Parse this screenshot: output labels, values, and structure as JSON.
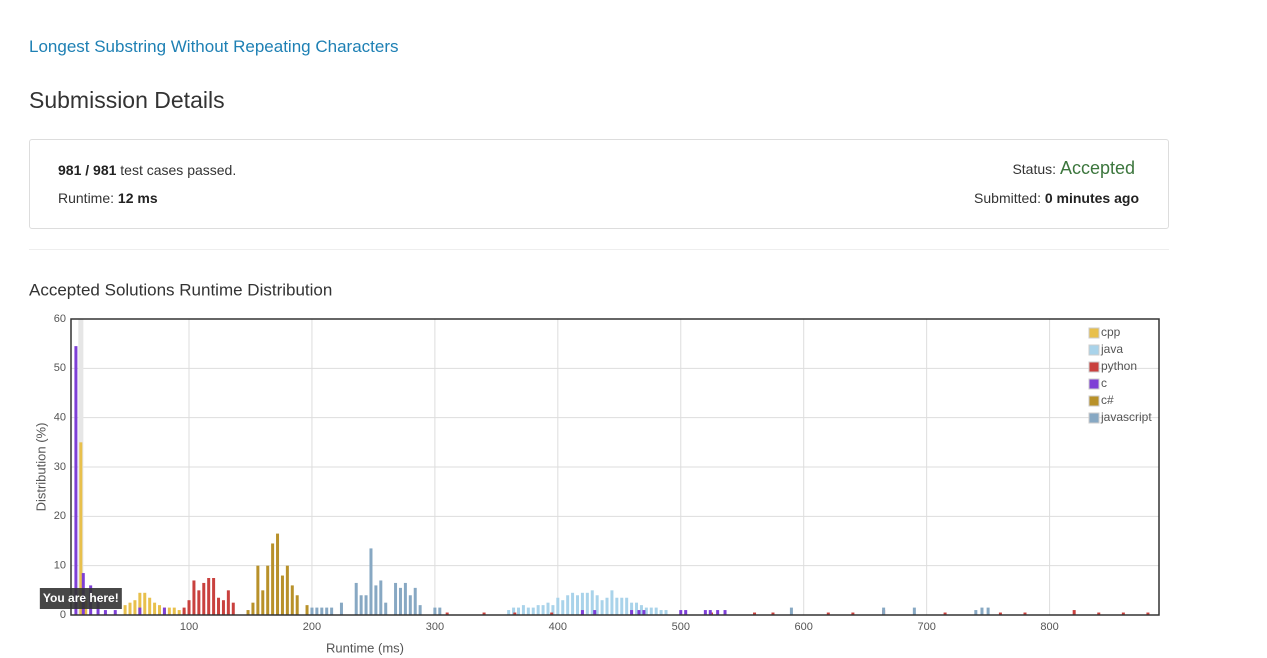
{
  "header": {
    "link": "Longest Substring Without Repeating Characters",
    "title": "Submission Details"
  },
  "details": {
    "passed": "981 / 981",
    "passed_suffix": "test cases passed.",
    "runtime_label": "Runtime:",
    "runtime": "12 ms",
    "status_label": "Status:",
    "status": "Accepted",
    "submitted_label": "Submitted:",
    "submitted": "0 minutes ago"
  },
  "chart_data": {
    "type": "bar",
    "title": "Accepted Solutions Runtime Distribution",
    "x_label": "Runtime (ms)",
    "y_label": "Distribution (%)",
    "annotation": {
      "text": "You are here!",
      "x": 12
    },
    "xlim": [
      4,
      889
    ],
    "xticks": [
      100,
      200,
      300,
      400,
      500,
      600,
      700,
      800
    ],
    "ylim": [
      0,
      60
    ],
    "yticks": [
      0,
      10,
      20,
      30,
      40,
      50,
      60
    ],
    "grid": true,
    "legend": "top-right",
    "series": [
      {
        "name": "cpp",
        "color": "#e8c04c",
        "x": [
          12,
          16,
          48,
          52,
          56,
          60,
          64,
          68,
          72,
          76,
          80,
          84,
          88,
          92,
          96
        ],
        "values": [
          35,
          3,
          2,
          2.5,
          3,
          4.5,
          4.5,
          3.5,
          2.5,
          2,
          1.5,
          1.5,
          1.5,
          1,
          1
        ]
      },
      {
        "name": "java",
        "color": "#a9d3ea",
        "x": [
          360,
          364,
          368,
          372,
          376,
          380,
          384,
          388,
          392,
          396,
          400,
          404,
          408,
          412,
          416,
          420,
          424,
          428,
          432,
          436,
          440,
          444,
          448,
          452,
          456,
          460,
          464,
          468,
          472,
          476,
          480,
          484,
          488
        ],
        "values": [
          1,
          1.5,
          1.5,
          2,
          1.5,
          1.5,
          2,
          2,
          2.5,
          2,
          3.5,
          3,
          4,
          4.5,
          4,
          4.5,
          4.5,
          5,
          4,
          3,
          3.5,
          5,
          3.5,
          3.5,
          3.5,
          2.5,
          2.5,
          2,
          1.5,
          1.5,
          1.5,
          1,
          1
        ]
      },
      {
        "name": "python",
        "color": "#c9413e",
        "x": [
          96,
          100,
          104,
          108,
          112,
          116,
          120,
          124,
          128,
          132,
          136,
          310,
          340,
          365,
          395,
          525,
          560,
          575,
          620,
          640,
          665,
          715,
          760,
          780,
          820,
          840,
          860,
          880
        ],
        "values": [
          1.5,
          3,
          7,
          5,
          6.5,
          7.5,
          7.5,
          3.5,
          3,
          5,
          2.5,
          0.5,
          0.5,
          0.5,
          0.5,
          0.5,
          0.5,
          0.5,
          0.5,
          0.5,
          1,
          0.5,
          0.5,
          0.5,
          1,
          0.5,
          0.5,
          0.5
        ]
      },
      {
        "name": "c",
        "color": "#7e3fd6",
        "x": [
          8,
          14,
          20,
          26,
          32,
          40,
          60,
          80,
          420,
          430,
          460,
          466,
          470,
          500,
          504,
          520,
          524,
          530,
          536
        ],
        "values": [
          54.5,
          8.5,
          6,
          4,
          1,
          1,
          1.5,
          1.5,
          1,
          1,
          1,
          1,
          1,
          1,
          1,
          1,
          1,
          1,
          1
        ]
      },
      {
        "name": "c#",
        "color": "#b8912a",
        "x": [
          148,
          152,
          156,
          160,
          164,
          168,
          172,
          176,
          180,
          184,
          188,
          196
        ],
        "values": [
          1,
          2.5,
          10,
          5,
          10,
          14.5,
          16.5,
          8,
          10,
          6,
          4,
          2
        ]
      },
      {
        "name": "javascript",
        "color": "#87a8c3",
        "x": [
          200,
          204,
          208,
          212,
          216,
          224,
          236,
          240,
          244,
          248,
          252,
          256,
          260,
          268,
          272,
          276,
          280,
          284,
          288,
          300,
          304,
          590,
          665,
          690,
          740,
          745,
          750
        ],
        "values": [
          1.5,
          1.5,
          1.5,
          1.5,
          1.5,
          2.5,
          6.5,
          4,
          4,
          13.5,
          6,
          7,
          2.5,
          6.5,
          5.5,
          6.5,
          4,
          5.5,
          2,
          1.5,
          1.5,
          1.5,
          1.5,
          1.5,
          1,
          1.5,
          1.5
        ]
      }
    ]
  }
}
